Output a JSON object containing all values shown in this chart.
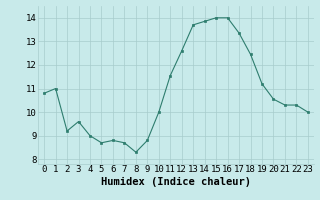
{
  "x": [
    0,
    1,
    2,
    3,
    4,
    5,
    6,
    7,
    8,
    9,
    10,
    11,
    12,
    13,
    14,
    15,
    16,
    17,
    18,
    19,
    20,
    21,
    22,
    23
  ],
  "y": [
    10.8,
    11.0,
    9.2,
    9.6,
    9.0,
    8.7,
    8.8,
    8.7,
    8.3,
    8.8,
    10.0,
    11.55,
    12.6,
    13.7,
    13.85,
    14.0,
    14.0,
    13.35,
    12.45,
    11.2,
    10.55,
    10.3,
    10.3,
    10.0
  ],
  "xlabel": "Humidex (Indice chaleur)",
  "ylim": [
    7.8,
    14.5
  ],
  "xlim": [
    -0.5,
    23.5
  ],
  "yticks": [
    8,
    9,
    10,
    11,
    12,
    13,
    14
  ],
  "xticks": [
    0,
    1,
    2,
    3,
    4,
    5,
    6,
    7,
    8,
    9,
    10,
    11,
    12,
    13,
    14,
    15,
    16,
    17,
    18,
    19,
    20,
    21,
    22,
    23
  ],
  "line_color": "#2e7d6e",
  "marker_color": "#2e7d6e",
  "bg_color": "#c8eaea",
  "grid_color": "#a8cccc",
  "xlabel_fontsize": 7.5,
  "tick_fontsize": 6.5
}
